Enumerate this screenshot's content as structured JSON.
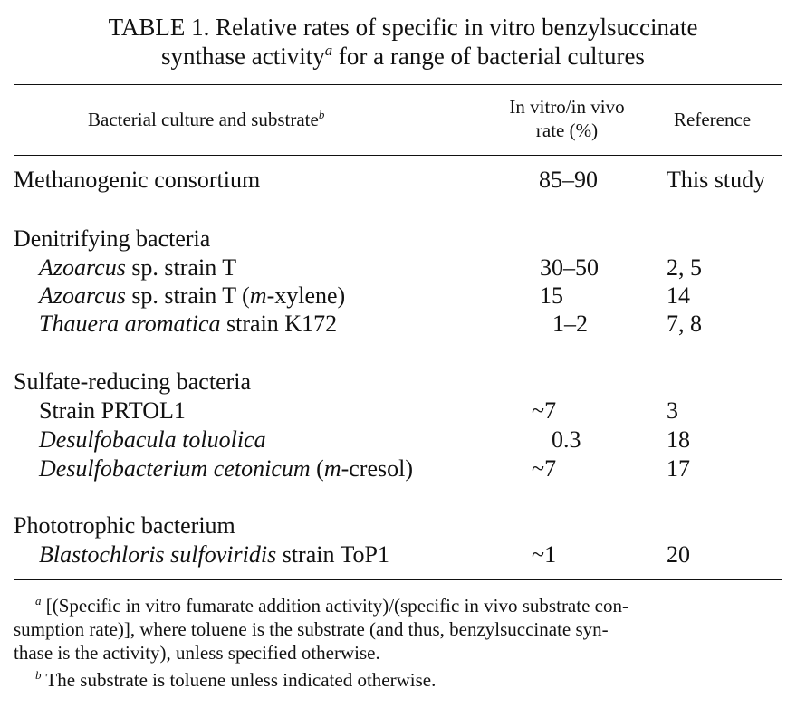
{
  "title": {
    "line1": "TABLE 1. Relative rates of specific in vitro benzylsuccinate",
    "line2_pre": "synthase activity",
    "line2_sup": "a",
    "line2_post": " for a range of bacterial cultures"
  },
  "header": {
    "col1": "Bacterial culture and substrate",
    "col1_sup": "b",
    "col2_line1": "In vitro/in vivo",
    "col2_line2": "rate (%)",
    "col3": "Reference"
  },
  "groups": {
    "methanogenic": {
      "name": "Methanogenic consortium",
      "rate": "85–90",
      "ref": "This study"
    },
    "denitrifying": {
      "name": "Denitrifying bacteria",
      "rows": [
        {
          "species": "Azoarcus",
          "rest": " sp. strain T",
          "rate": "30–50",
          "ref": "2, 5"
        },
        {
          "species": "Azoarcus",
          "rest": " sp. strain T (",
          "sub_it": "m",
          "sub_rest": "-xylene)",
          "rate": "15",
          "ref": "14"
        },
        {
          "species": "Thauera aromatica",
          "rest": " strain K172",
          "rate": "1–2",
          "ref": "7, 8"
        }
      ]
    },
    "sulfate": {
      "name": "Sulfate-reducing bacteria",
      "rows": [
        {
          "rest": "Strain PRTOL1",
          "rate": "~7",
          "ref": "3"
        },
        {
          "species": "Desulfobacula toluolica",
          "rate": "0.3",
          "ref": "18"
        },
        {
          "species": "Desulfobacterium cetonicum",
          "rest": " (",
          "sub_it": "m",
          "sub_rest": "-cresol)",
          "rate": "~7",
          "ref": "17"
        }
      ]
    },
    "phototrophic": {
      "name": "Phototrophic bacterium",
      "rows": [
        {
          "species": "Blastochloris sulfoviridis",
          "rest": " strain ToP1",
          "rate": "~1",
          "ref": "20"
        }
      ]
    }
  },
  "footnotes": {
    "a_mark": "a",
    "a_line1": " [(Specific in vitro fumarate addition activity)/(specific in vivo substrate con-",
    "a_line2": "sumption rate)], where toluene is the substrate (and thus, benzylsuccinate syn-",
    "a_line3": "thase is the activity), unless specified otherwise.",
    "b_mark": "b",
    "b_line1": " The substrate is toluene unless indicated otherwise."
  }
}
